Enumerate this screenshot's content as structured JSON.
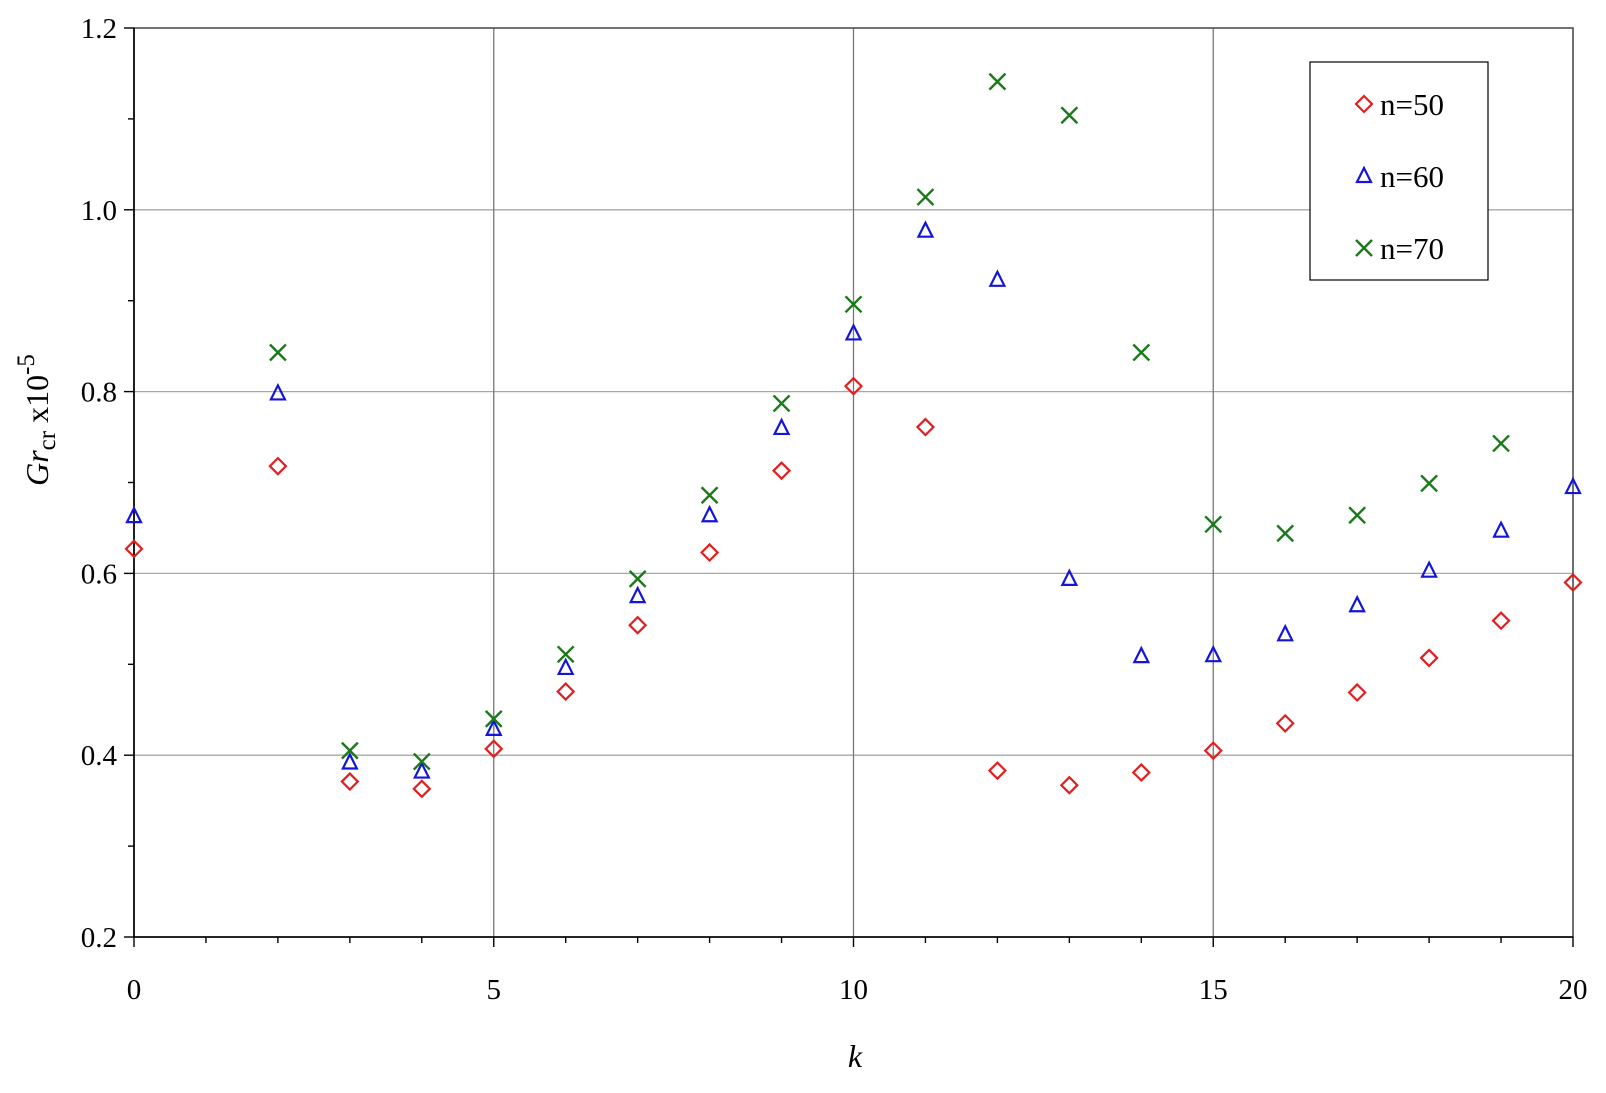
{
  "chart_data": {
    "type": "scatter",
    "title": "",
    "xlabel": "k",
    "ylabel": {
      "base": "Gr",
      "subscript": "cr",
      "mid": " x10",
      "superscript": "-5"
    },
    "xlim": [
      0,
      20
    ],
    "ylim": [
      0.2,
      1.2
    ],
    "x_ticks": [
      0,
      5,
      10,
      15,
      20
    ],
    "x_tick_labels": [
      "0",
      "5",
      "10",
      "15",
      "20"
    ],
    "y_ticks": [
      0.2,
      0.4,
      0.6,
      0.8,
      1.0,
      1.2
    ],
    "y_tick_labels": [
      "0.2",
      "0.4",
      "0.6",
      "0.8",
      "1.0",
      "1.2"
    ],
    "grid": true,
    "legend_position": "top-right",
    "series": [
      {
        "name": "n=50",
        "marker": "diamond",
        "color": "#e02020",
        "points": [
          [
            0,
            0.627
          ],
          [
            2,
            0.718
          ],
          [
            3,
            0.371
          ],
          [
            4,
            0.363
          ],
          [
            5,
            0.407
          ],
          [
            6,
            0.47
          ],
          [
            7,
            0.543
          ],
          [
            8,
            0.623
          ],
          [
            9,
            0.713
          ],
          [
            10,
            0.806
          ],
          [
            11,
            0.761
          ],
          [
            12,
            0.383
          ],
          [
            13,
            0.367
          ],
          [
            14,
            0.381
          ],
          [
            15,
            0.405
          ],
          [
            16,
            0.435
          ],
          [
            17,
            0.469
          ],
          [
            18,
            0.507
          ],
          [
            19,
            0.548
          ],
          [
            20,
            0.59
          ]
        ]
      },
      {
        "name": "n=60",
        "marker": "triangle",
        "color": "#1515d8",
        "points": [
          [
            0,
            0.663
          ],
          [
            2,
            0.798
          ],
          [
            3,
            0.392
          ],
          [
            4,
            0.382
          ],
          [
            5,
            0.429
          ],
          [
            6,
            0.496
          ],
          [
            7,
            0.575
          ],
          [
            8,
            0.664
          ],
          [
            9,
            0.76
          ],
          [
            10,
            0.864
          ],
          [
            11,
            0.977
          ],
          [
            12,
            0.923
          ],
          [
            13,
            0.594
          ],
          [
            14,
            0.509
          ],
          [
            15,
            0.51
          ],
          [
            16,
            0.533
          ],
          [
            17,
            0.565
          ],
          [
            18,
            0.603
          ],
          [
            19,
            0.647
          ],
          [
            20,
            0.695
          ]
        ]
      },
      {
        "name": "n=70",
        "marker": "x",
        "color": "#1a7a1a",
        "points": [
          [
            2,
            0.843
          ],
          [
            3,
            0.405
          ],
          [
            4,
            0.393
          ],
          [
            5,
            0.44
          ],
          [
            6,
            0.511
          ],
          [
            7,
            0.594
          ],
          [
            8,
            0.686
          ],
          [
            9,
            0.787
          ],
          [
            10,
            0.896
          ],
          [
            11,
            1.014
          ],
          [
            12,
            1.141
          ],
          [
            13,
            1.104
          ],
          [
            14,
            0.843
          ],
          [
            15,
            0.654
          ],
          [
            16,
            0.644
          ],
          [
            17,
            0.664
          ],
          [
            18,
            0.699
          ],
          [
            19,
            0.743
          ]
        ]
      }
    ]
  }
}
